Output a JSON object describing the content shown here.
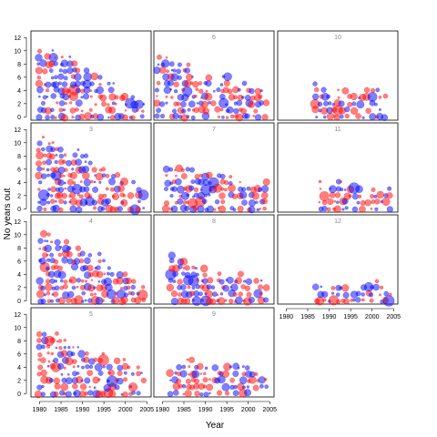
{
  "chart_data": {
    "type": "scatter",
    "xlabel": "Year",
    "ylabel": "No years out",
    "xlim": [
      1978,
      2006
    ],
    "ylim": [
      -0.5,
      13
    ],
    "x_ticks": [
      1980,
      1985,
      1990,
      1995,
      2000,
      2005
    ],
    "y_ticks": [
      0,
      2,
      4,
      6,
      8,
      10,
      12
    ],
    "colors": {
      "series_a": "#ff0000",
      "series_b": "#0000ff",
      "frame": "#000000",
      "strip_text": "#888888"
    },
    "panels": [
      {
        "label": "",
        "year_min": 1980,
        "year_max": 2004,
        "max_out": 11,
        "slope": 0.8
      },
      {
        "label": "6",
        "year_min": 1979,
        "year_max": 2004,
        "max_out": 8,
        "slope": 0.4
      },
      {
        "label": "10",
        "year_min": 1987,
        "year_max": 2003,
        "max_out": 4,
        "slope": 0.12
      },
      {
        "label": "3",
        "year_min": 1980,
        "year_max": 2004,
        "max_out": 11,
        "slope": 0.7
      },
      {
        "label": "7",
        "year_min": 1981,
        "year_max": 2004,
        "max_out": 7,
        "slope": 0.35
      },
      {
        "label": "11",
        "year_min": 1988,
        "year_max": 2004,
        "max_out": 3,
        "slope": 0.08
      },
      {
        "label": "4",
        "year_min": 1980,
        "year_max": 2004,
        "max_out": 10,
        "slope": 0.6
      },
      {
        "label": "8",
        "year_min": 1982,
        "year_max": 2004,
        "max_out": 6,
        "slope": 0.3
      },
      {
        "label": "12",
        "year_min": 1987,
        "year_max": 2004,
        "max_out": 2,
        "slope": 0.05
      },
      {
        "label": "5",
        "year_min": 1980,
        "year_max": 2004,
        "max_out": 9,
        "slope": 0.5
      },
      {
        "label": "9",
        "year_min": 1982,
        "year_max": 2004,
        "max_out": 5,
        "slope": 0.2
      }
    ]
  }
}
